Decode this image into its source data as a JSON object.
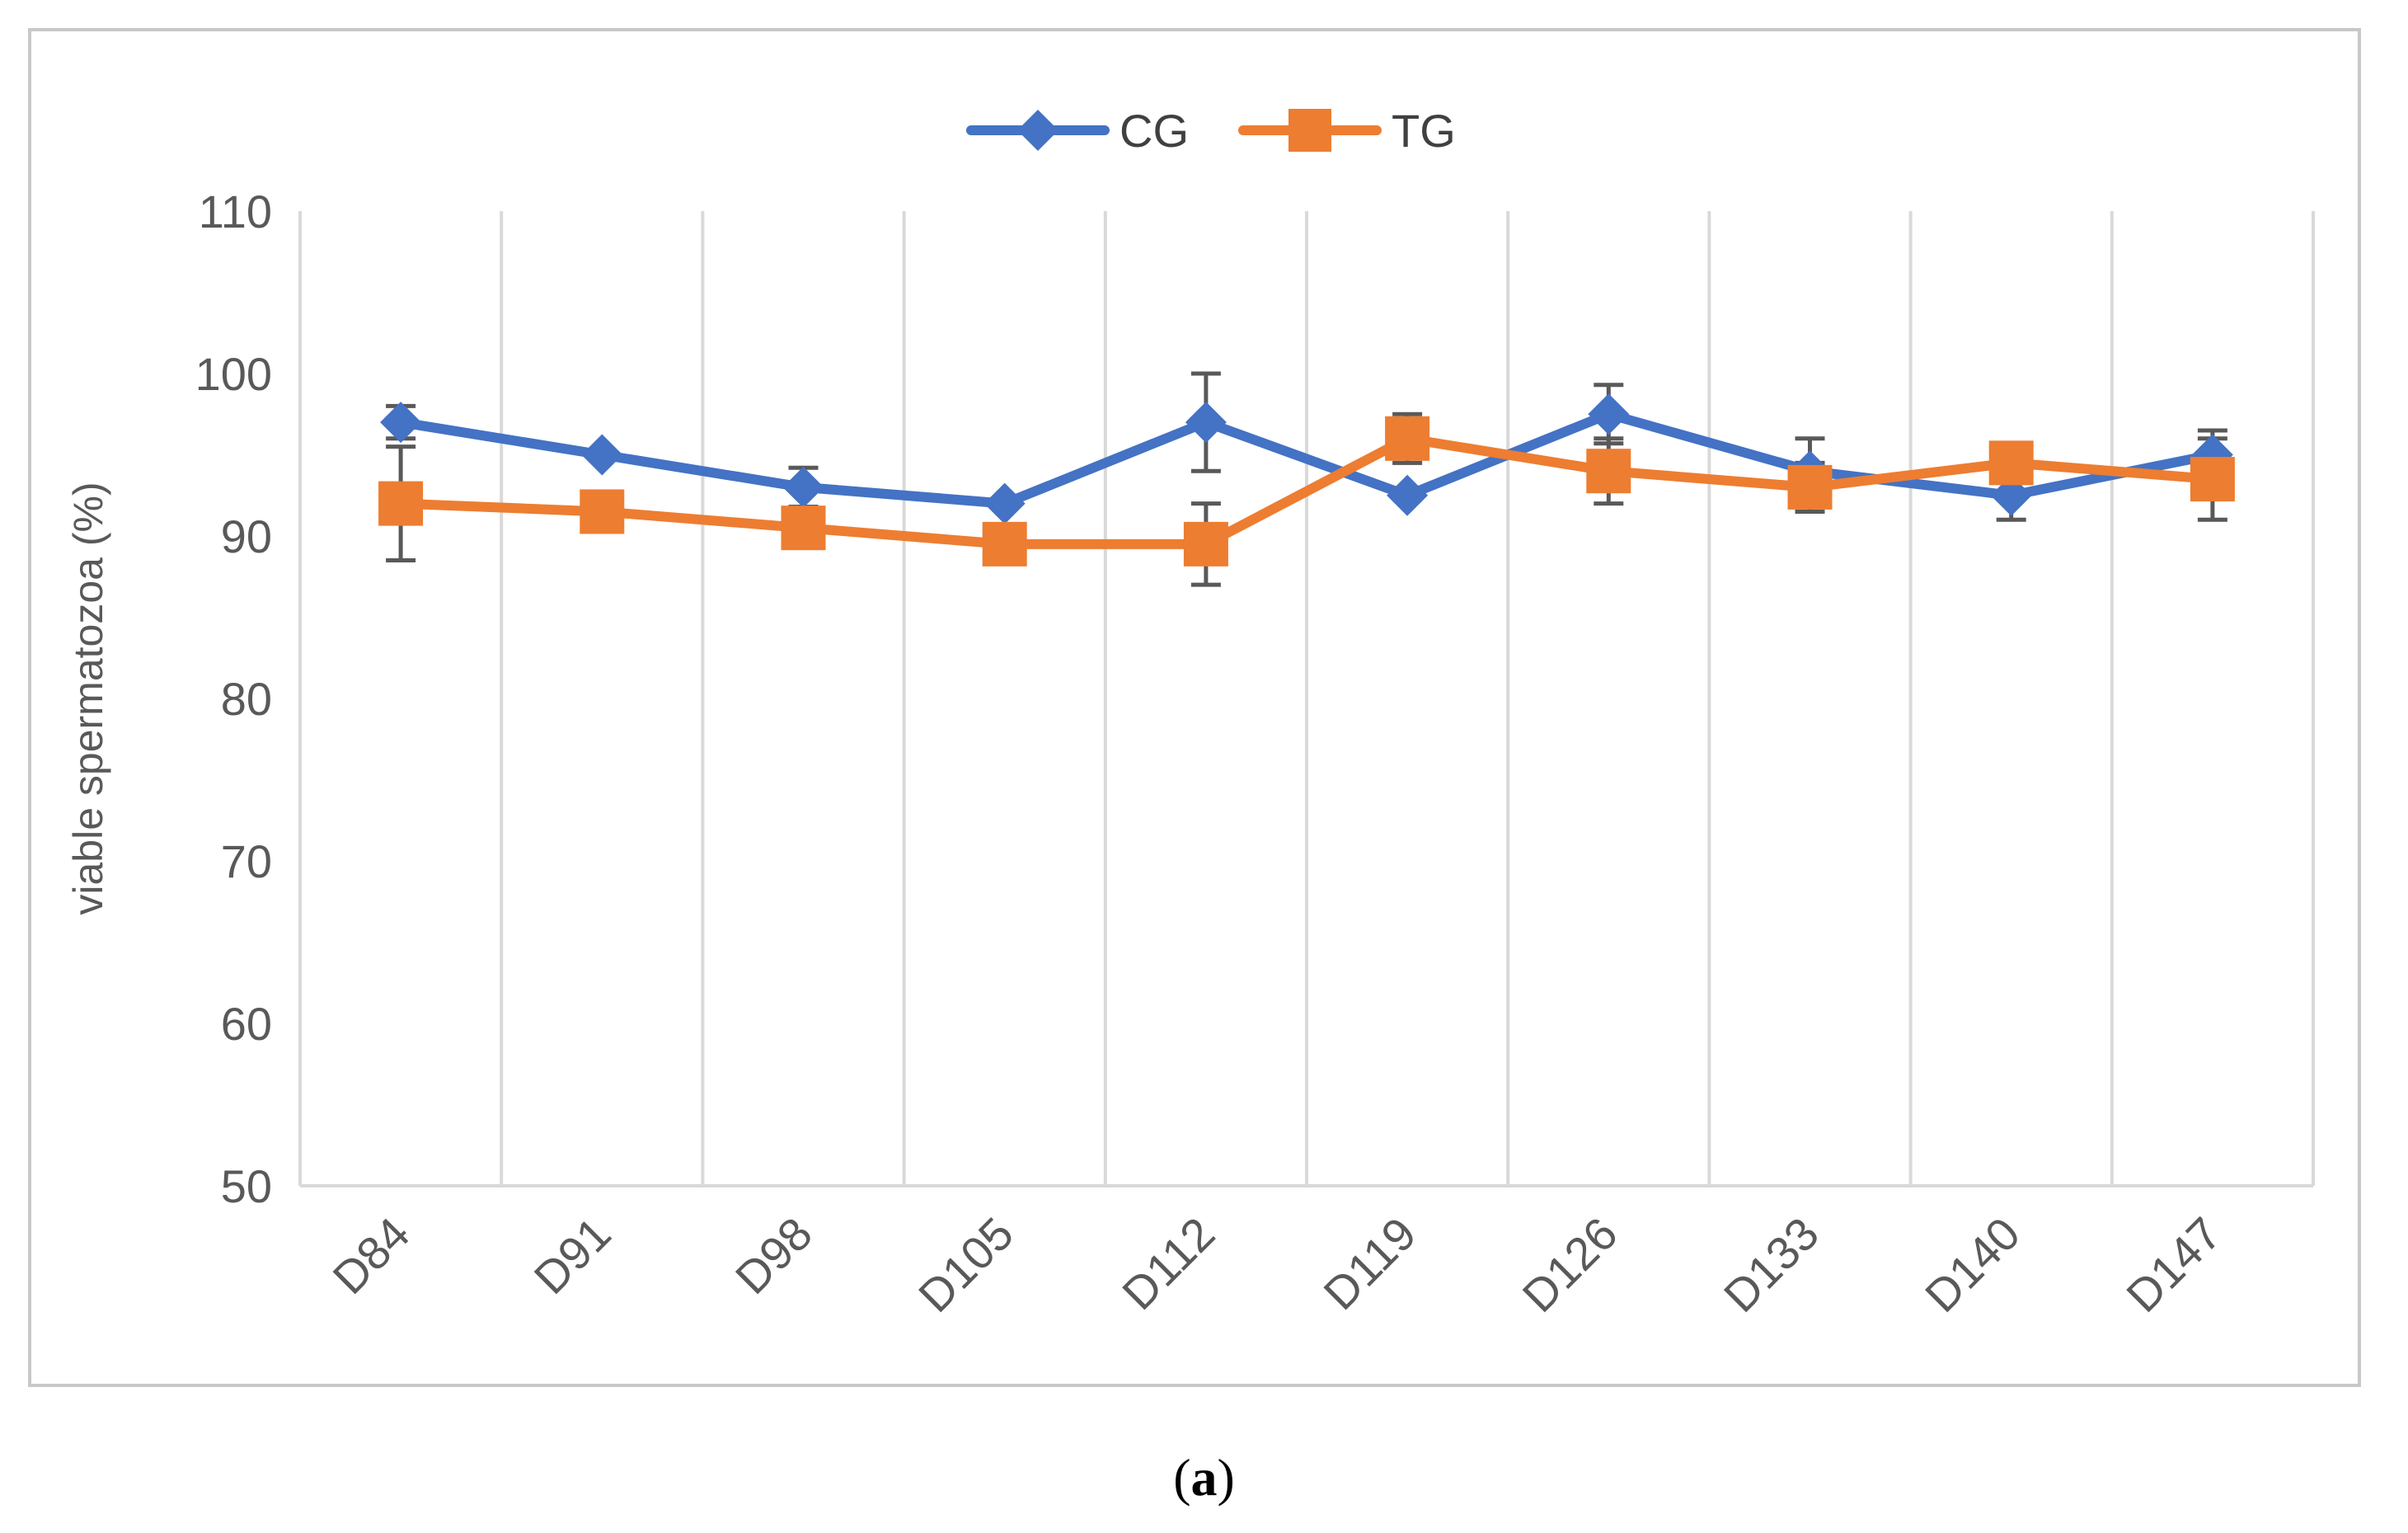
{
  "caption": {
    "open": "(",
    "letter": "a",
    "close": ")"
  },
  "colors": {
    "cg": "#4472C4",
    "tg": "#ED7D31",
    "grid": "#d9d9d9",
    "axis": "#d9d9d9",
    "error_bar": "#595959",
    "text": "#595959"
  },
  "chart_data": {
    "type": "line",
    "title": "",
    "xlabel": "",
    "ylabel": "viable spermatozoa (%)",
    "ylim": [
      50,
      110
    ],
    "yticks": [
      50,
      60,
      70,
      80,
      90,
      100,
      110
    ],
    "grid": "vertical",
    "legend_position": "top-center",
    "categories": [
      "D84",
      "D91",
      "D98",
      "D105",
      "D112",
      "D119",
      "D126",
      "D133",
      "D140",
      "D147"
    ],
    "series": [
      {
        "name": "CG",
        "marker": "diamond",
        "values": [
          97,
          95,
          93,
          92,
          97,
          92.5,
          97.5,
          94,
          92.5,
          95
        ],
        "errors": [
          1,
          0,
          1.2,
          0,
          3,
          0,
          1.8,
          2,
          1.5,
          1.5
        ]
      },
      {
        "name": "TG",
        "marker": "square",
        "values": [
          92,
          91.5,
          90.5,
          89.5,
          89.5,
          96,
          94,
          93,
          94.5,
          93.5
        ],
        "errors": [
          3.5,
          0,
          0,
          0,
          2.5,
          1.5,
          2,
          1.5,
          0,
          2.5
        ]
      }
    ]
  }
}
